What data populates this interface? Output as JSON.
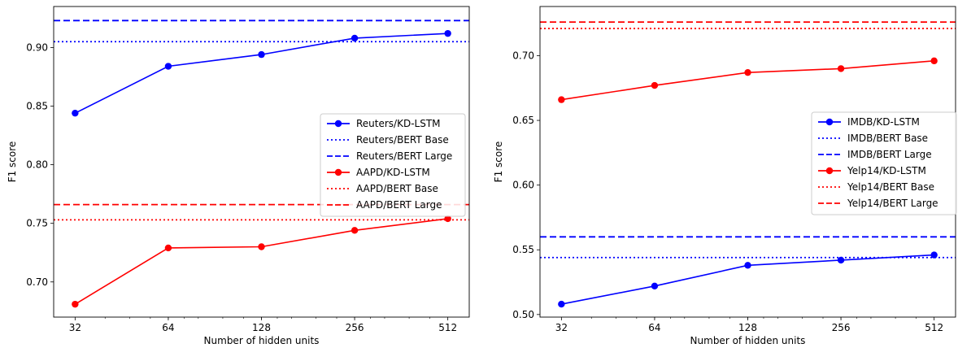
{
  "chart_data": [
    {
      "type": "line",
      "xlabel": "Number of hidden units",
      "ylabel": "F1 score",
      "x_scale": "log2",
      "x": [
        32,
        64,
        128,
        256,
        512
      ],
      "xticks": [
        "32",
        "64",
        "128",
        "256",
        "512"
      ],
      "ylim": [
        0.67,
        0.935
      ],
      "yticks": [
        "0.70",
        "0.75",
        "0.80",
        "0.85",
        "0.90"
      ],
      "ytick_values": [
        0.7,
        0.75,
        0.8,
        0.85,
        0.9
      ],
      "legend_position": "center-right",
      "grid": false,
      "series": [
        {
          "name": "Reuters/KD-LSTM",
          "kind": "line",
          "style": "solid-markers",
          "color": "#0000ff",
          "values": [
            0.844,
            0.884,
            0.894,
            0.908,
            0.912
          ]
        },
        {
          "name": "Reuters/BERT Base",
          "kind": "hline",
          "style": "dotted",
          "color": "#0000ff",
          "value": 0.905
        },
        {
          "name": "Reuters/BERT Large",
          "kind": "hline",
          "style": "dashed",
          "color": "#0000ff",
          "value": 0.923
        },
        {
          "name": "AAPD/KD-LSTM",
          "kind": "line",
          "style": "solid-markers",
          "color": "#ff0000",
          "values": [
            0.681,
            0.729,
            0.73,
            0.744,
            0.754
          ]
        },
        {
          "name": "AAPD/BERT Base",
          "kind": "hline",
          "style": "dotted",
          "color": "#ff0000",
          "value": 0.753
        },
        {
          "name": "AAPD/BERT Large",
          "kind": "hline",
          "style": "dashed",
          "color": "#ff0000",
          "value": 0.766
        }
      ]
    },
    {
      "type": "line",
      "xlabel": "Number of hidden units",
      "ylabel": "F1 score",
      "x_scale": "log2",
      "x": [
        32,
        64,
        128,
        256,
        512
      ],
      "xticks": [
        "32",
        "64",
        "128",
        "256",
        "512"
      ],
      "ylim": [
        0.498,
        0.738
      ],
      "yticks": [
        "0.50",
        "0.55",
        "0.60",
        "0.65",
        "0.70"
      ],
      "ytick_values": [
        0.5,
        0.55,
        0.6,
        0.65,
        0.7
      ],
      "legend_position": "center-right",
      "grid": false,
      "series": [
        {
          "name": "IMDB/KD-LSTM",
          "kind": "line",
          "style": "solid-markers",
          "color": "#0000ff",
          "values": [
            0.508,
            0.522,
            0.538,
            0.542,
            0.546
          ]
        },
        {
          "name": "IMDB/BERT Base",
          "kind": "hline",
          "style": "dotted",
          "color": "#0000ff",
          "value": 0.544
        },
        {
          "name": "IMDB/BERT Large",
          "kind": "hline",
          "style": "dashed",
          "color": "#0000ff",
          "value": 0.56
        },
        {
          "name": "Yelp14/KD-LSTM",
          "kind": "line",
          "style": "solid-markers",
          "color": "#ff0000",
          "values": [
            0.666,
            0.677,
            0.687,
            0.69,
            0.696
          ]
        },
        {
          "name": "Yelp14/BERT Base",
          "kind": "hline",
          "style": "dotted",
          "color": "#ff0000",
          "value": 0.721
        },
        {
          "name": "Yelp14/BERT Large",
          "kind": "hline",
          "style": "dashed",
          "color": "#ff0000",
          "value": 0.726
        }
      ]
    }
  ]
}
